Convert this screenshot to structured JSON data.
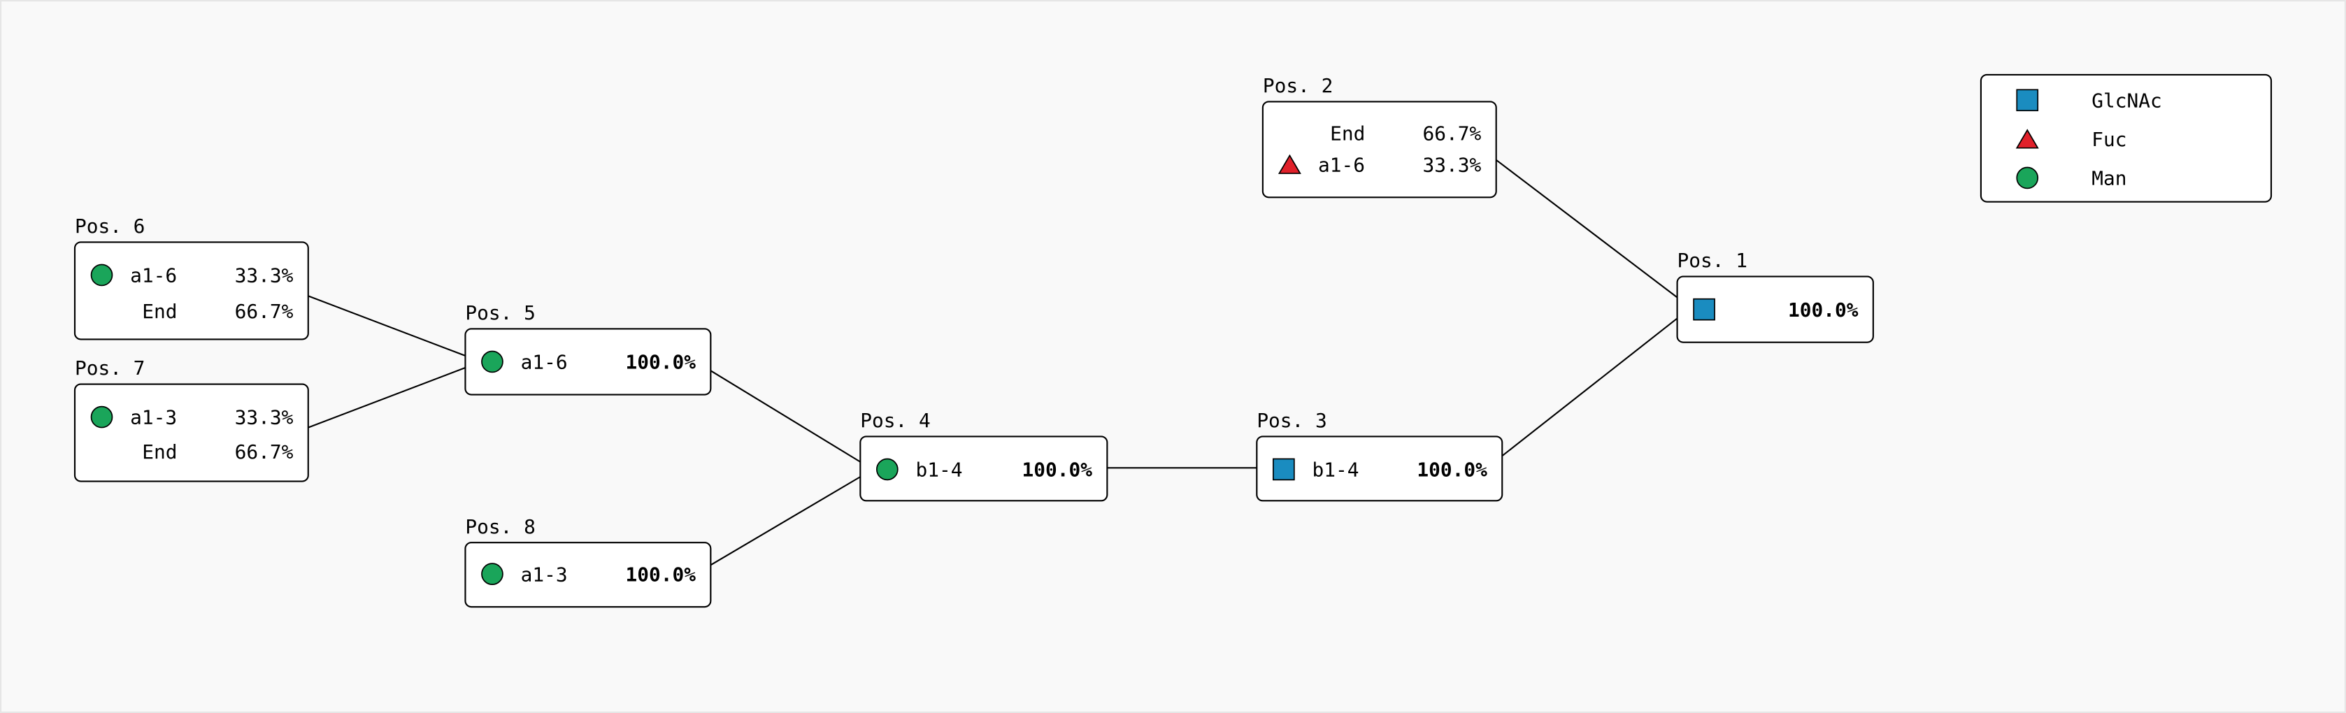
{
  "legend": [
    "GlcNAc",
    "Fuc",
    "Man"
  ],
  "nodes": [
    {
      "label": "Pos. 1",
      "rows": [
        {
          "percent": "100.0%"
        }
      ]
    },
    {
      "label": "Pos. 2",
      "rows": [
        {
          "linkage": "End",
          "percent": "66.7%"
        },
        {
          "linkage": "a1-6",
          "percent": "33.3%"
        }
      ]
    },
    {
      "label": "Pos. 3",
      "rows": [
        {
          "linkage": "b1-4",
          "percent": "100.0%"
        }
      ]
    },
    {
      "label": "Pos. 4",
      "rows": [
        {
          "linkage": "b1-4",
          "percent": "100.0%"
        }
      ]
    },
    {
      "label": "Pos. 5",
      "rows": [
        {
          "linkage": "a1-6",
          "percent": "100.0%"
        }
      ]
    },
    {
      "label": "Pos. 6",
      "rows": [
        {
          "linkage": "a1-6",
          "percent": "33.3%"
        },
        {
          "linkage": "End",
          "percent": "66.7%"
        }
      ]
    },
    {
      "label": "Pos. 7",
      "rows": [
        {
          "linkage": "a1-3",
          "percent": "33.3%"
        },
        {
          "linkage": "End",
          "percent": "66.7%"
        }
      ]
    },
    {
      "label": "Pos. 8",
      "rows": [
        {
          "linkage": "a1-3",
          "percent": "100.0%"
        }
      ]
    }
  ]
}
